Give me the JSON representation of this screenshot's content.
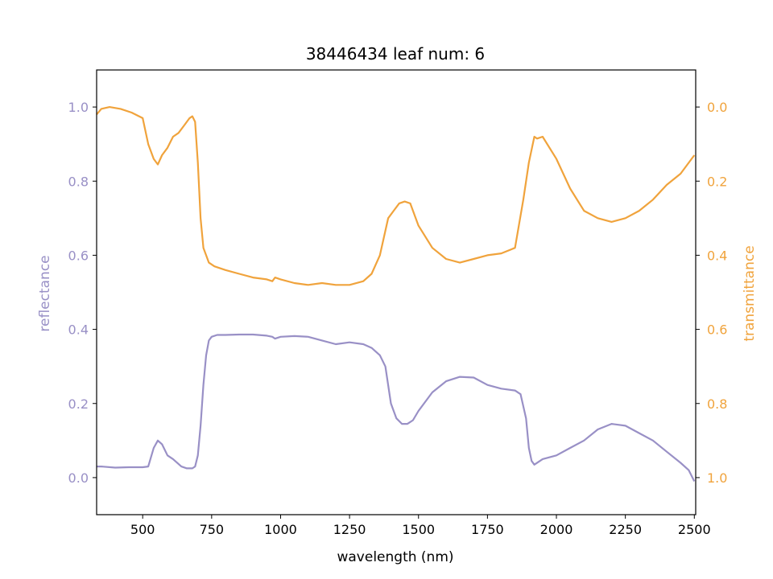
{
  "chart_data": {
    "type": "line",
    "title": "38446434 leaf num: 6",
    "xlabel": "wavelength (nm)",
    "y_left_label": "reflectance",
    "y_right_label": "transmittance",
    "xlim": [
      333,
      2505
    ],
    "ylim_left": [
      -0.1,
      1.1
    ],
    "ylim_right": [
      1.1,
      -0.1
    ],
    "right_axis_inverted": true,
    "x_ticks": [
      500,
      750,
      1000,
      1250,
      1500,
      1750,
      2000,
      2250,
      2500
    ],
    "y_left_ticks": [
      0.0,
      0.2,
      0.4,
      0.6,
      0.8,
      1.0
    ],
    "y_right_ticks": [
      0.0,
      0.2,
      0.4,
      0.6,
      0.8,
      1.0
    ],
    "grid": false,
    "colors": {
      "reflectance": "#9990c6",
      "transmittance": "#f0a33c",
      "left_axis_text": "#9990c6",
      "right_axis_text": "#f0a33c"
    },
    "series": [
      {
        "name": "reflectance",
        "axis": "left",
        "x": [
          333,
          350,
          400,
          450,
          500,
          520,
          540,
          555,
          570,
          590,
          610,
          640,
          660,
          680,
          690,
          700,
          710,
          720,
          730,
          740,
          750,
          770,
          800,
          850,
          900,
          950,
          970,
          980,
          1000,
          1050,
          1100,
          1150,
          1200,
          1250,
          1300,
          1330,
          1360,
          1380,
          1400,
          1420,
          1440,
          1460,
          1480,
          1500,
          1550,
          1600,
          1650,
          1700,
          1750,
          1800,
          1850,
          1870,
          1890,
          1900,
          1910,
          1920,
          1950,
          2000,
          2050,
          2100,
          2150,
          2200,
          2250,
          2300,
          2350,
          2400,
          2450,
          2480,
          2500
        ],
        "y": [
          0.03,
          0.03,
          0.027,
          0.028,
          0.028,
          0.03,
          0.08,
          0.1,
          0.09,
          0.06,
          0.05,
          0.03,
          0.025,
          0.025,
          0.03,
          0.06,
          0.14,
          0.25,
          0.33,
          0.37,
          0.38,
          0.385,
          0.385,
          0.386,
          0.386,
          0.383,
          0.38,
          0.375,
          0.38,
          0.382,
          0.38,
          0.37,
          0.36,
          0.365,
          0.36,
          0.35,
          0.33,
          0.3,
          0.2,
          0.16,
          0.145,
          0.145,
          0.155,
          0.18,
          0.23,
          0.26,
          0.272,
          0.27,
          0.25,
          0.24,
          0.235,
          0.225,
          0.16,
          0.08,
          0.045,
          0.035,
          0.05,
          0.06,
          0.08,
          0.1,
          0.13,
          0.145,
          0.14,
          0.12,
          0.1,
          0.07,
          0.04,
          0.02,
          -0.01
        ]
      },
      {
        "name": "transmittance",
        "axis": "right",
        "x": [
          333,
          350,
          380,
          420,
          460,
          500,
          520,
          540,
          555,
          570,
          590,
          610,
          630,
          650,
          670,
          680,
          690,
          700,
          710,
          720,
          740,
          760,
          800,
          850,
          900,
          950,
          970,
          980,
          1000,
          1050,
          1100,
          1150,
          1200,
          1250,
          1300,
          1330,
          1360,
          1390,
          1410,
          1430,
          1450,
          1470,
          1500,
          1550,
          1600,
          1650,
          1700,
          1750,
          1800,
          1850,
          1880,
          1900,
          1920,
          1930,
          1950,
          2000,
          2050,
          2100,
          2150,
          2200,
          2250,
          2300,
          2350,
          2400,
          2450,
          2500
        ],
        "y": [
          0.02,
          0.005,
          0.0,
          0.005,
          0.015,
          0.03,
          0.1,
          0.14,
          0.155,
          0.13,
          0.11,
          0.08,
          0.07,
          0.05,
          0.03,
          0.025,
          0.04,
          0.15,
          0.3,
          0.38,
          0.42,
          0.43,
          0.44,
          0.45,
          0.46,
          0.465,
          0.47,
          0.46,
          0.465,
          0.475,
          0.48,
          0.475,
          0.48,
          0.48,
          0.47,
          0.45,
          0.4,
          0.3,
          0.28,
          0.26,
          0.255,
          0.26,
          0.32,
          0.38,
          0.41,
          0.42,
          0.41,
          0.4,
          0.395,
          0.38,
          0.25,
          0.15,
          0.08,
          0.085,
          0.08,
          0.14,
          0.22,
          0.28,
          0.3,
          0.31,
          0.3,
          0.28,
          0.25,
          0.21,
          0.18,
          0.13
        ]
      }
    ]
  }
}
